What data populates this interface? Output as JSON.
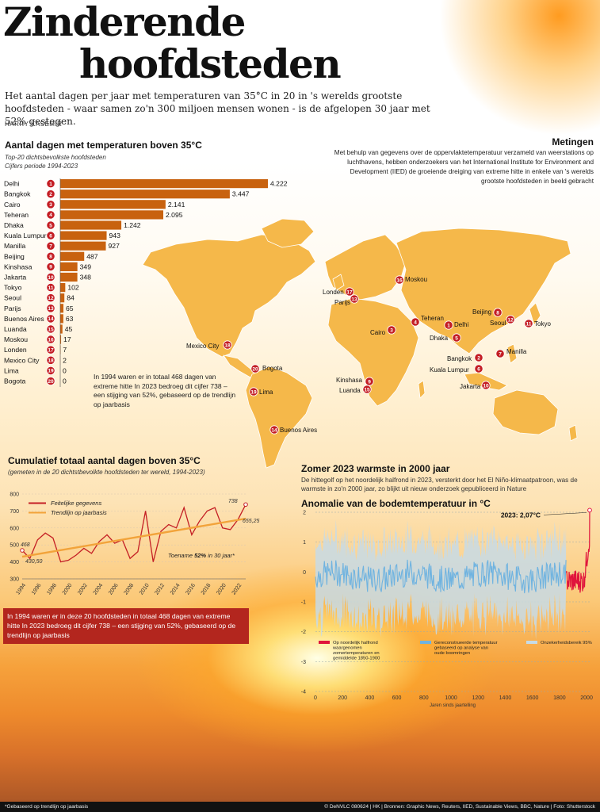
{
  "header": {
    "title_line1": "Zinderende",
    "title_line2": "hoofdsteden",
    "subtitle": "Het aantal dagen per jaar met temperaturen van 35°C in 20 in 's werelds grootste hoofdsteden - waar samen zo'n 300 miljoen mensen wonen - is de afgelopen 30 jaar met 52% gestegen.",
    "author": "HARRY KASEMIR"
  },
  "metingen": {
    "title": "Metingen",
    "text": "Met behulp van gegevens over de oppervlaktetemperatuur verzameld van weerstations op luchthavens, hebben onderzoekers van het International Institute for Environment and Development (IIED) de groeiende dreiging van extreme hitte in enkele van 's werelds grootste hoofdsteden in beeld gebracht"
  },
  "note_1994": "In 1994 waren er in totaal 468 dagen van extreme hitte In 2023 bedroeg dit cijfer 738 – een stijging van 52%, gebaseerd op de trendlijn op jaarbasis",
  "banner": "In 1994 waren er in deze 20 hoofdsteden in totaal 468 dagen van extreme hitte In 2023 bedroeg dit cijfer 738 – een stijging van 52%, gebaseerd op de trendlijn op jaarbasis",
  "footer": {
    "left": "*Gebaseerd op trendlijn op jaarbasis",
    "right": "© DeNVLC 080624 | HK | Bronnen: Graphic News, Reuters, IIED, Sustainable Views, BBC, Nature | Foto: Shutterstock"
  },
  "map": {
    "land_color": "#f5b84a",
    "badge_color": "#c41e24",
    "cities": [
      {
        "rank": "1",
        "name": "Delhi"
      },
      {
        "rank": "2",
        "name": "Bangkok"
      },
      {
        "rank": "3",
        "name": "Cairo"
      },
      {
        "rank": "4",
        "name": "Teheran"
      },
      {
        "rank": "5",
        "name": "Dhaka"
      },
      {
        "rank": "6",
        "name": "Kuala Lumpur"
      },
      {
        "rank": "7",
        "name": "Manilla"
      },
      {
        "rank": "8",
        "name": "Beijing"
      },
      {
        "rank": "9",
        "name": "Kinshasa"
      },
      {
        "rank": "10",
        "name": "Jakarta"
      },
      {
        "rank": "11",
        "name": "Tokyo"
      },
      {
        "rank": "12",
        "name": "Seoul"
      },
      {
        "rank": "13",
        "name": "Parijs"
      },
      {
        "rank": "14",
        "name": "Buenos Aires"
      },
      {
        "rank": "15",
        "name": "Luanda"
      },
      {
        "rank": "16",
        "name": "Moskou"
      },
      {
        "rank": "17",
        "name": "Londen"
      },
      {
        "rank": "18",
        "name": "Mexico City"
      },
      {
        "rank": "19",
        "name": "Lima"
      },
      {
        "rank": "20",
        "name": "Bogota"
      }
    ]
  },
  "chart_data": [
    {
      "type": "bar",
      "title": "Aantal dagen met temperaturen boven 35°C",
      "subtitle": "Top-20 dichtsbevolkste hoofdsteden",
      "subtitle2": "Cijfers periode 1994-2023",
      "bar_color": "#c8620f",
      "categories": [
        "Delhi",
        "Bangkok",
        "Cairo",
        "Teheran",
        "Dhaka",
        "Kuala Lumpur",
        "Manilla",
        "Beijing",
        "Kinshasa",
        "Jakarta",
        "Tokyo",
        "Seoul",
        "Parijs",
        "Buenos Aires",
        "Luanda",
        "Moskou",
        "Londen",
        "Mexico City",
        "Lima",
        "Bogota"
      ],
      "values": [
        4222,
        3447,
        2141,
        2095,
        1242,
        943,
        927,
        487,
        349,
        348,
        102,
        84,
        65,
        63,
        45,
        17,
        7,
        2,
        0,
        0
      ],
      "value_labels": [
        "4.222",
        "3.447",
        "2.141",
        "2.095",
        "1.242",
        "943",
        "927",
        "487",
        "349",
        "348",
        "102",
        "84",
        "65",
        "63",
        "45",
        "17",
        "7",
        "2",
        "0",
        "0"
      ]
    },
    {
      "type": "line",
      "title": "Cumulatief totaal aantal dagen boven 35°C",
      "subtitle": "(gemeten in de 20 dichtstbevolkte hoofdsteden ter wereld, 1994-2023)",
      "x_ticks": [
        "1994",
        "1996",
        "1998",
        "2000",
        "2002",
        "2004",
        "2006",
        "2008",
        "2010",
        "2012",
        "2014",
        "2016",
        "2018",
        "2020",
        "2022"
      ],
      "y_ticks": [
        "300",
        "400",
        "500",
        "600",
        "700",
        "800"
      ],
      "ylim": [
        300,
        800
      ],
      "xlim": [
        1994,
        2023
      ],
      "series": [
        {
          "name": "Feitelijke gegevens",
          "color": "#c41e24",
          "x": [
            1994,
            1995,
            1996,
            1997,
            1998,
            1999,
            2000,
            2001,
            2002,
            2003,
            2004,
            2005,
            2006,
            2007,
            2008,
            2009,
            2010,
            2011,
            2012,
            2013,
            2014,
            2015,
            2016,
            2017,
            2018,
            2019,
            2020,
            2021,
            2022,
            2023
          ],
          "values": [
            468,
            420,
            530,
            570,
            540,
            400,
            410,
            440,
            480,
            450,
            520,
            560,
            510,
            530,
            420,
            460,
            700,
            400,
            580,
            620,
            600,
            720,
            560,
            640,
            700,
            720,
            600,
            590,
            650,
            738
          ]
        },
        {
          "name": "Trendlijn op jaarbasis",
          "color": "#f2a33a",
          "x": [
            1994,
            2023
          ],
          "values": [
            430.5,
            655.25
          ]
        }
      ],
      "annotations": [
        "468",
        "430,50",
        "738",
        "655,25"
      ],
      "note_prefix": "Toename ",
      "note_bold": "52%",
      "note_suffix": " in 30 jaar*"
    },
    {
      "type": "line",
      "title": "Anomalie van de bodemtemperatuur in °C",
      "heading": "Zomer 2023 warmste in 2000 jaar",
      "intro": "De hittegolf op het noordelijk halfrond in 2023, versterkt door het El Niño-klimaatpatroon, was de warmste in zo'n 2000 jaar, zo blijkt uit nieuw onderzoek gepubliceerd in Nature",
      "xlabel": "Jaren sinds jaartelling",
      "x_ticks": [
        "0",
        "200",
        "400",
        "600",
        "800",
        "1000",
        "1200",
        "1400",
        "1600",
        "1800",
        "2000"
      ],
      "y_ticks": [
        "2",
        "1",
        "0",
        "-1",
        "-2",
        "-3",
        "-4"
      ],
      "xlim": [
        0,
        2023
      ],
      "ylim": [
        -4,
        2
      ],
      "annotation": "2023: 2,07°C",
      "series": [
        {
          "name": "Op noordelijk halfrond waargenomen zomertemperaturen en gemiddelde 1850-1900",
          "color": "#e0143c"
        },
        {
          "name": "Gereconstrueerde temperatuur gebaseerd op analyse van oude boomringen",
          "color": "#6fb3e0"
        },
        {
          "name": "Onzekerheidsbereik 95%",
          "color": "#c7dbe6"
        }
      ]
    }
  ]
}
